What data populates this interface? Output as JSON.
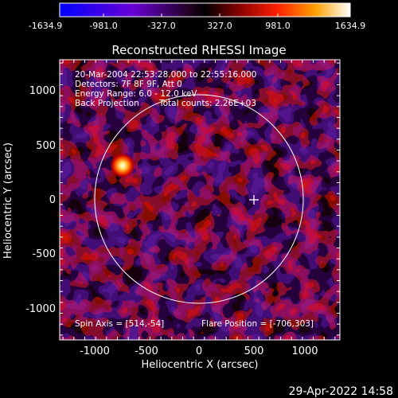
{
  "colorbar": {
    "ticks": [
      "-1634.9",
      "-981.0",
      "-327.0",
      "327.0",
      "981.0",
      "1634.9"
    ],
    "colors": [
      "#0000ff",
      "#6a00d6",
      "#200020",
      "#000000",
      "#8a0000",
      "#ff2000",
      "#ffa000",
      "#ffffff"
    ]
  },
  "title": "Reconstructed RHESSI Image",
  "info_lines": [
    "20-Mar-2004 22:53:28.000 to 22:55:16.000",
    "Detectors: 7F 8F 9F, Att 0",
    "Energy Range: 6.0 - 12.0 keV",
    "Back Projection"
  ],
  "total_counts": "Total counts: 2.26E+03",
  "spin_axis": "Spin Axis = [514,-54]",
  "flare_position": "Flare Position = [-706,303]",
  "x_axis": {
    "label": "Heliocentric X (arcsec)",
    "ticks": [
      "-1000",
      "-500",
      "0",
      "500",
      "1000"
    ]
  },
  "y_axis": {
    "label": "Heliocentric Y (arcsec)",
    "ticks": [
      "1000",
      "500",
      "0",
      "-500",
      "-1000"
    ]
  },
  "timestamp": "29-Apr-2022 14:58",
  "markers": {
    "bright_source": {
      "x": -706,
      "y": 303
    },
    "spin_axis_cross": {
      "x": 514,
      "y": -54
    },
    "solar_disk_radius_arcsec": 960
  }
}
